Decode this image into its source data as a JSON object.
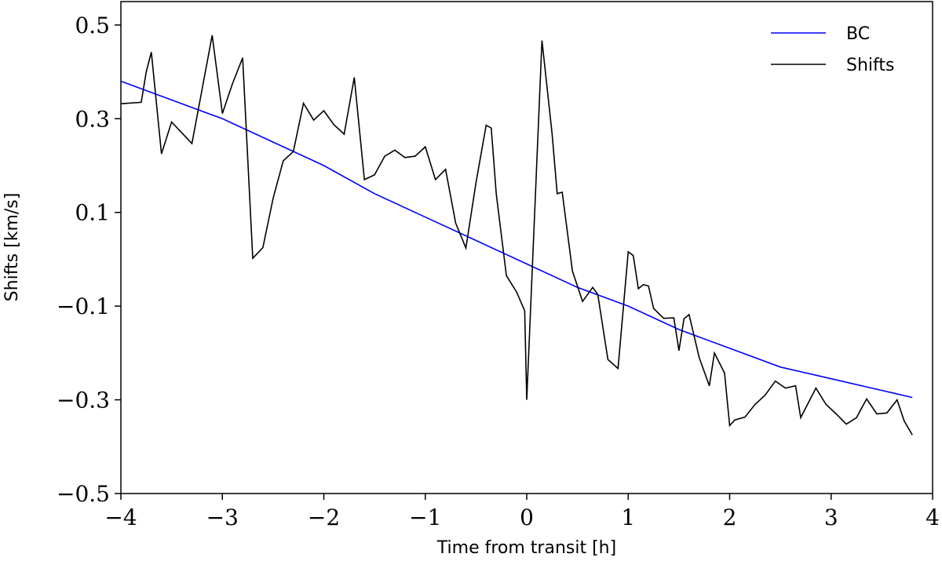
{
  "chart_data": {
    "type": "line",
    "xlabel": "Time from transit [h]",
    "ylabel": "Shifts [km/s]",
    "xlim": [
      -4,
      4
    ],
    "ylim": [
      -0.5,
      0.55
    ],
    "xticks": [
      -4,
      -3,
      -2,
      -1,
      0,
      1,
      2,
      3,
      4
    ],
    "xtick_labels": [
      "−4",
      "−3",
      "−2",
      "−1",
      "0",
      "1",
      "2",
      "3",
      "4"
    ],
    "yticks": [
      -0.5,
      -0.3,
      -0.1,
      0.1,
      0.3,
      0.5
    ],
    "ytick_labels": [
      "−0.5",
      "−0.3",
      "−0.1",
      "0.1",
      "0.3",
      "0.5"
    ],
    "legend_position": "top-right",
    "grid": false,
    "series": [
      {
        "name": "BC",
        "color": "#0000ff",
        "x": [
          -4.0,
          -3.5,
          -3.0,
          -2.5,
          -2.0,
          -1.5,
          -1.0,
          -0.5,
          0.0,
          0.5,
          1.0,
          1.5,
          2.0,
          2.5,
          3.0,
          3.5,
          3.8
        ],
        "y": [
          0.38,
          0.34,
          0.3,
          0.25,
          0.2,
          0.14,
          0.09,
          0.04,
          -0.01,
          -0.06,
          -0.1,
          -0.15,
          -0.19,
          -0.23,
          -0.255,
          -0.28,
          -0.295
        ]
      },
      {
        "name": "Shifts",
        "color": "#000000",
        "x": [
          -4.0,
          -3.8,
          -3.75,
          -3.7,
          -3.6,
          -3.5,
          -3.3,
          -3.1,
          -3.0,
          -2.9,
          -2.8,
          -2.7,
          -2.6,
          -2.5,
          -2.4,
          -2.3,
          -2.2,
          -2.1,
          -2.0,
          -1.9,
          -1.8,
          -1.7,
          -1.6,
          -1.5,
          -1.4,
          -1.3,
          -1.2,
          -1.1,
          -1.0,
          -0.9,
          -0.8,
          -0.7,
          -0.6,
          -0.5,
          -0.4,
          -0.35,
          -0.3,
          -0.2,
          -0.1,
          -0.02,
          0.0,
          0.15,
          0.25,
          0.3,
          0.35,
          0.45,
          0.55,
          0.65,
          0.7,
          0.8,
          0.9,
          1.0,
          1.05,
          1.1,
          1.15,
          1.2,
          1.25,
          1.35,
          1.45,
          1.5,
          1.55,
          1.6,
          1.7,
          1.8,
          1.85,
          1.95,
          2.0,
          2.05,
          2.15,
          2.25,
          2.35,
          2.45,
          2.55,
          2.65,
          2.7,
          2.85,
          2.95,
          3.05,
          3.15,
          3.25,
          3.35,
          3.45,
          3.55,
          3.65,
          3.72,
          3.8
        ],
        "y": [
          0.332,
          0.335,
          0.4,
          0.442,
          0.225,
          0.293,
          0.247,
          0.478,
          0.311,
          0.375,
          0.43,
          0.002,
          0.025,
          0.13,
          0.21,
          0.23,
          0.333,
          0.297,
          0.317,
          0.287,
          0.267,
          0.388,
          0.17,
          0.18,
          0.22,
          0.233,
          0.217,
          0.22,
          0.24,
          0.17,
          0.192,
          0.077,
          0.024,
          0.164,
          0.286,
          0.28,
          0.139,
          -0.035,
          -0.07,
          -0.11,
          -0.3,
          0.467,
          0.268,
          0.14,
          0.143,
          -0.025,
          -0.09,
          -0.06,
          -0.075,
          -0.214,
          -0.233,
          0.016,
          0.008,
          -0.063,
          -0.054,
          -0.057,
          -0.105,
          -0.126,
          -0.125,
          -0.195,
          -0.127,
          -0.118,
          -0.21,
          -0.27,
          -0.2,
          -0.243,
          -0.355,
          -0.343,
          -0.337,
          -0.31,
          -0.29,
          -0.26,
          -0.275,
          -0.27,
          -0.338,
          -0.275,
          -0.31,
          -0.33,
          -0.352,
          -0.338,
          -0.298,
          -0.33,
          -0.328,
          -0.3,
          -0.345,
          -0.375
        ]
      }
    ]
  }
}
